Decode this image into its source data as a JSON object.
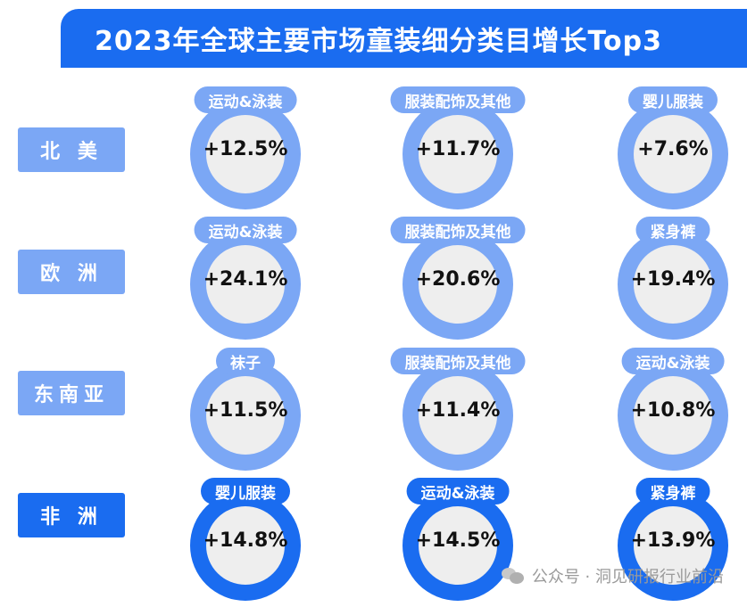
{
  "title": "2023年全球主要市场童装细分类目增长Top3",
  "colors": {
    "dark": "#1a6cf0",
    "light": "#7ba7f5"
  },
  "rows": [
    {
      "region": "北 美",
      "style": "light",
      "items": [
        {
          "category": "运动&泳装",
          "value": "+12.5%"
        },
        {
          "category": "服装配饰及其他",
          "value": "+11.7%"
        },
        {
          "category": "婴儿服装",
          "value": "+7.6%"
        }
      ]
    },
    {
      "region": "欧 洲",
      "style": "light",
      "items": [
        {
          "category": "运动&泳装",
          "value": "+24.1%"
        },
        {
          "category": "服装配饰及其他",
          "value": "+20.6%"
        },
        {
          "category": "紧身裤",
          "value": "+19.4%"
        }
      ]
    },
    {
      "region": "东南亚",
      "style": "light",
      "items": [
        {
          "category": "袜子",
          "value": "+11.5%"
        },
        {
          "category": "服装配饰及其他",
          "value": "+11.4%"
        },
        {
          "category": "运动&泳装",
          "value": "+10.8%"
        }
      ]
    },
    {
      "region": "非 洲",
      "style": "dark",
      "items": [
        {
          "category": "婴儿服装",
          "value": "+14.8%"
        },
        {
          "category": "运动&泳装",
          "value": "+14.5%"
        },
        {
          "category": "紧身裤",
          "value": "+13.9%"
        }
      ]
    }
  ],
  "watermark": {
    "icon": "wechat-icon",
    "text": "公众号 · 洞见研报行业前沿"
  }
}
